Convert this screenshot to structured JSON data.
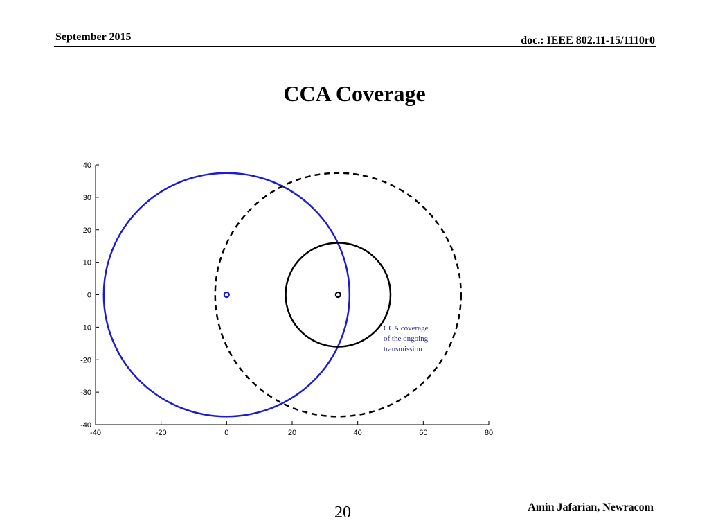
{
  "header": {
    "date": "September 2015",
    "doc_id": "doc.: IEEE 802.11-15/1110r0"
  },
  "slide": {
    "title": "CCA Coverage"
  },
  "footer": {
    "page_number": "20",
    "author": "Amin Jafarian, Newracom"
  },
  "chart_data": {
    "type": "scatter",
    "title": "",
    "xlabel": "",
    "ylabel": "",
    "xlim": [
      -40,
      80
    ],
    "ylim": [
      -40,
      40
    ],
    "xticks": [
      -40,
      -20,
      0,
      20,
      40,
      60,
      80
    ],
    "yticks": [
      40,
      30,
      20,
      10,
      0,
      -10,
      -20,
      -30,
      -40
    ],
    "grid": false,
    "circles": [
      {
        "name": "",
        "cx": 0,
        "cy": 0,
        "r": 37.5,
        "color": "#1a1adb",
        "style": "solid"
      },
      {
        "name": "",
        "cx": 34,
        "cy": 0,
        "r": 37.5,
        "color": "#000000",
        "style": "dashed"
      },
      {
        "name": "",
        "cx": 34,
        "cy": 0,
        "r": 16,
        "color": "#000000",
        "style": "solid"
      }
    ],
    "points": [
      {
        "x": 0,
        "y": 0,
        "color": "#1a1adb",
        "marker": "o"
      },
      {
        "x": 34,
        "y": 0,
        "color": "#000000",
        "marker": "o"
      }
    ],
    "annotation": {
      "lines": [
        "CCA coverage",
        "of the ongoing",
        "transmission"
      ],
      "color": "#2a2a8c"
    }
  }
}
